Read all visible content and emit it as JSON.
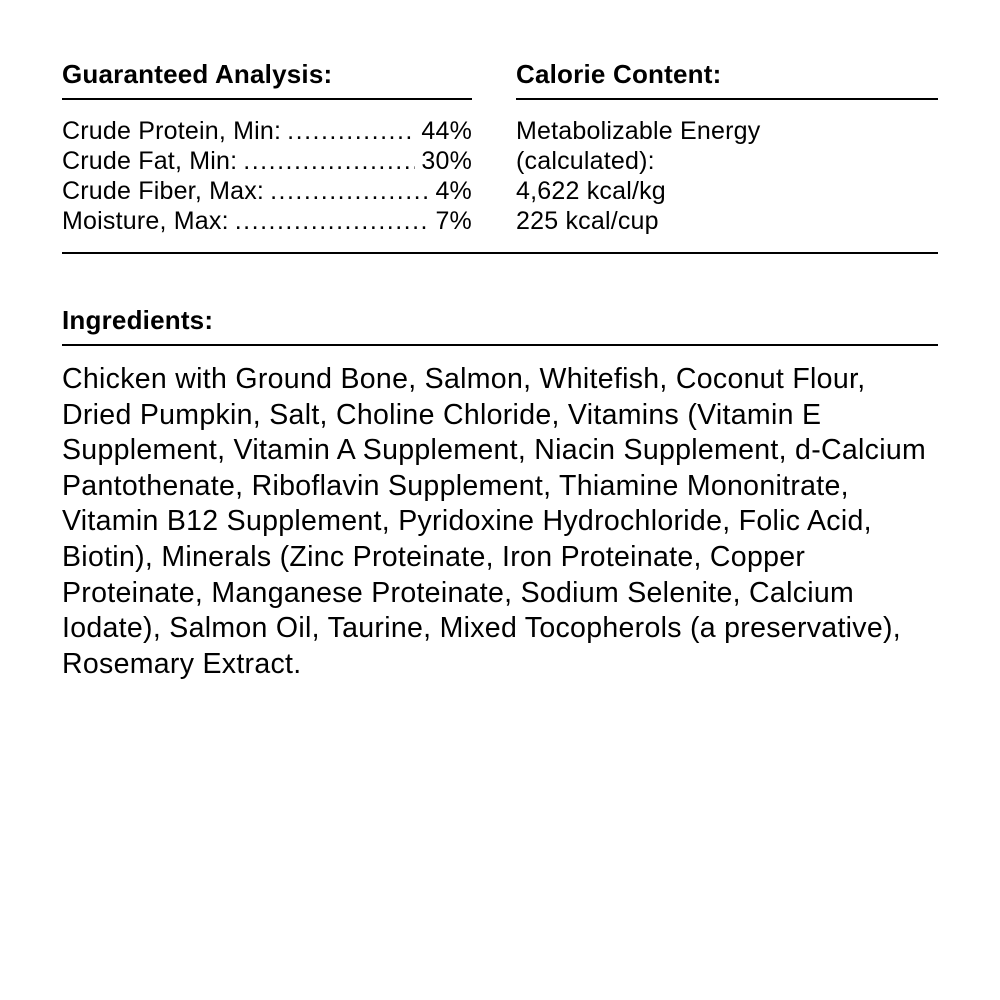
{
  "analysis": {
    "heading": "Guaranteed Analysis:",
    "rows": [
      {
        "label": "Crude Protein, Min:",
        "value": "44%"
      },
      {
        "label": "Crude Fat, Min:",
        "value": "30%"
      },
      {
        "label": "Crude Fiber, Max:",
        "value": "4%"
      },
      {
        "label": "Moisture, Max:",
        "value": "7%"
      }
    ]
  },
  "calories": {
    "heading": "Calorie Content:",
    "lines": [
      "Metabolizable Energy",
      "(calculated):",
      "4,622 kcal/kg",
      "225 kcal/cup"
    ]
  },
  "ingredients": {
    "heading": "Ingredients:",
    "text": "Chicken with Ground Bone, Salmon, Whitefish, Coconut Flour, Dried Pumpkin, Salt, Choline Chloride, Vitamins (Vitamin E Supplement, Vitamin A Supplement, Niacin Supplement, d-Calcium Pantothenate, Riboflavin Supplement, Thiamine Mononitrate, Vitamin B12 Supplement, Pyridoxine Hydrochloride, Folic Acid, Biotin), Minerals (Zinc Proteinate, Iron Proteinate, Copper Proteinate, Manganese Proteinate, Sodium Selenite, Calcium Iodate), Salmon Oil, Taurine, Mixed Tocopherols (a preservative), Rosemary Extract."
  }
}
